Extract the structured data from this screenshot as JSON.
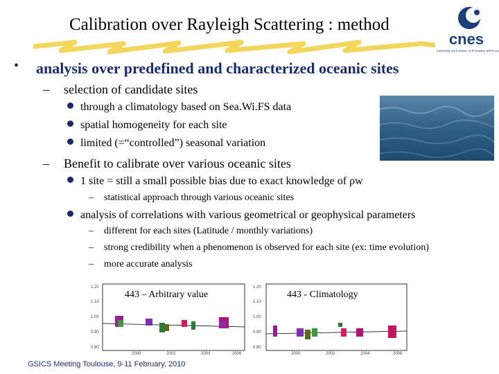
{
  "slide": {
    "title": "Calibration over Rayleigh Scattering : method",
    "main_point": "analysis over predefined and characterized oceanic sites",
    "logo": {
      "text": "cnes",
      "subtext": "CENTRE NATIONAL D'ÉTUDES SPATIALES"
    },
    "section1": {
      "heading": "selection of candidate sites",
      "bullets": [
        "through a climatology based on Sea.Wi.FS data",
        "spatial homogeneity for each site",
        "limited (=“controlled”) seasonal variation"
      ]
    },
    "section2": {
      "heading": "Benefit to calibrate over various oceanic sites",
      "bullet1": "1 site = still a small possible bias due to exact knowledge of ρw",
      "bullet1_sub": "statistical approach through various oceanic sites",
      "bullet2": "analysis of correlations with various geometrical or geophysical parameters",
      "bullet2_subs": [
        "different for each sites (Latitude / monthly variations)",
        "strong credibility when a phenomenon is observed for each site (ex: time evolution)",
        "more accurate analysis"
      ]
    },
    "charts": [
      {
        "label": "443 – Arbitrary value",
        "yticks": [
          "1.20",
          "1.10",
          "1.00",
          "0.90",
          "0.80"
        ],
        "xticks": [
          "",
          "2000",
          "2002",
          "2004",
          "2006"
        ]
      },
      {
        "label": "443 - Climatology",
        "yticks": [
          "1.20",
          "1.10",
          "1.00",
          "0.90",
          "0.80"
        ],
        "xticks": [
          "",
          "2000",
          "2002",
          "2004",
          "2006"
        ]
      }
    ],
    "footer": "GSICS Meeting Toulouse, 9-11 February, 2010",
    "colors": {
      "text_blue": "#1a2b6e",
      "highlight": "#f2d34a",
      "logo_blue": "#1a3f7a"
    }
  }
}
